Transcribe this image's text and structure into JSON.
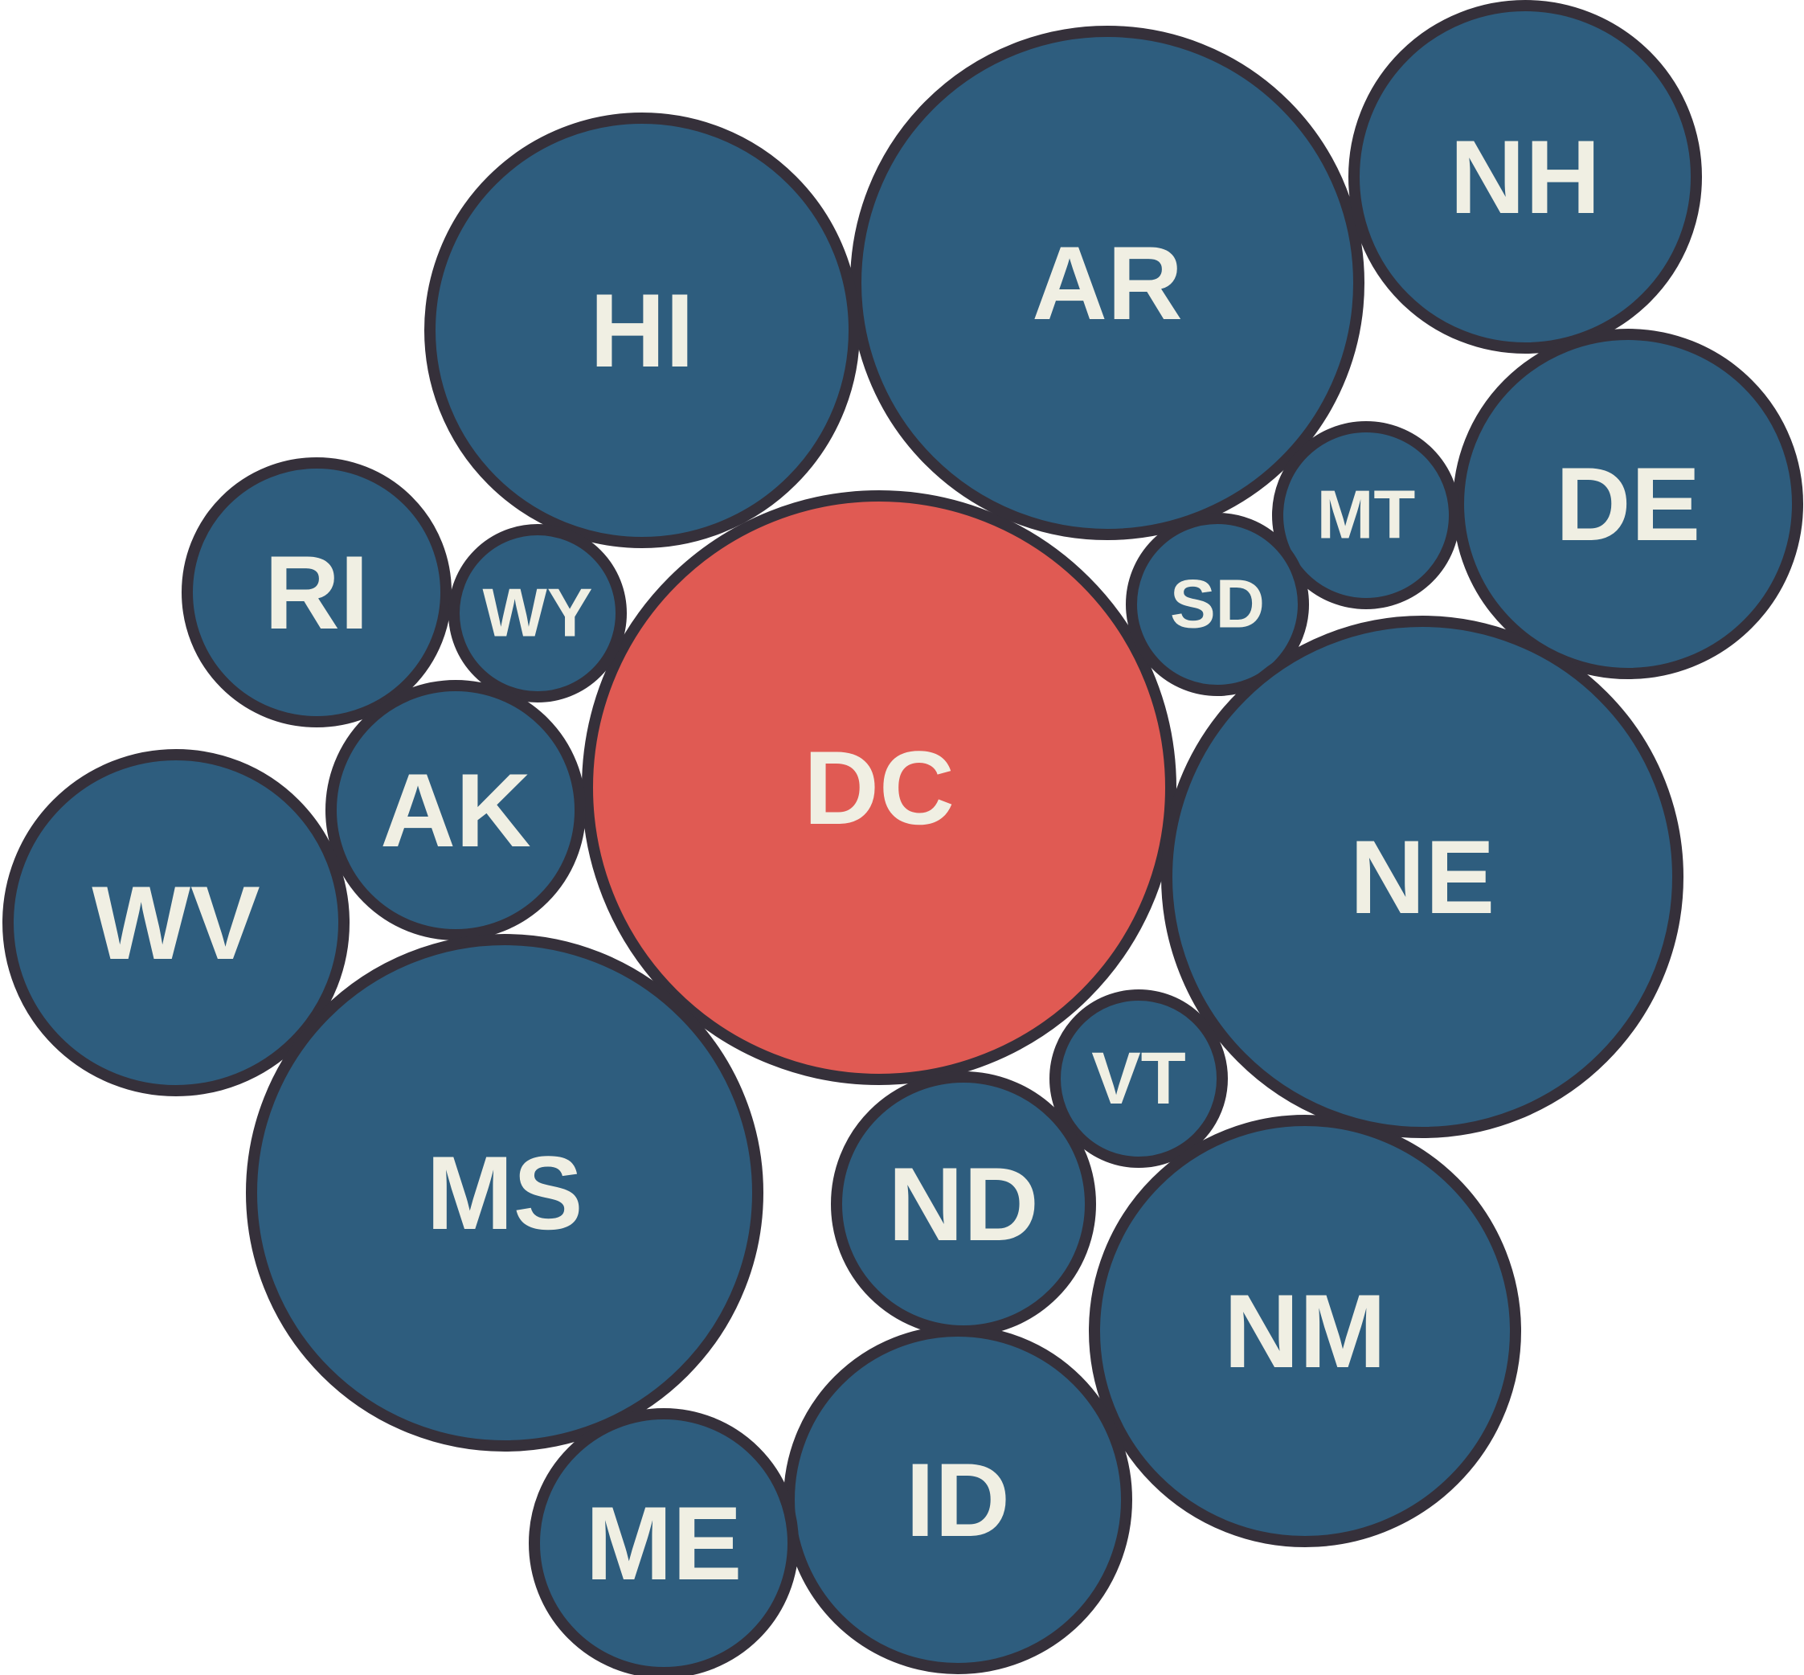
{
  "colors": {
    "default_fill": "#2e5d7e",
    "highlight_fill": "#e05a53",
    "stroke": "#35303a",
    "label": "#f0efe3"
  },
  "bubbles": [
    {
      "label": "DC",
      "highlight": true
    },
    {
      "label": "AR"
    },
    {
      "label": "HI"
    },
    {
      "label": "NH"
    },
    {
      "label": "DE"
    },
    {
      "label": "MT"
    },
    {
      "label": "SD"
    },
    {
      "label": "RI"
    },
    {
      "label": "WY"
    },
    {
      "label": "AK"
    },
    {
      "label": "WV"
    },
    {
      "label": "NE"
    },
    {
      "label": "VT"
    },
    {
      "label": "MS"
    },
    {
      "label": "ND"
    },
    {
      "label": "NM"
    },
    {
      "label": "ID"
    },
    {
      "label": "ME"
    }
  ]
}
